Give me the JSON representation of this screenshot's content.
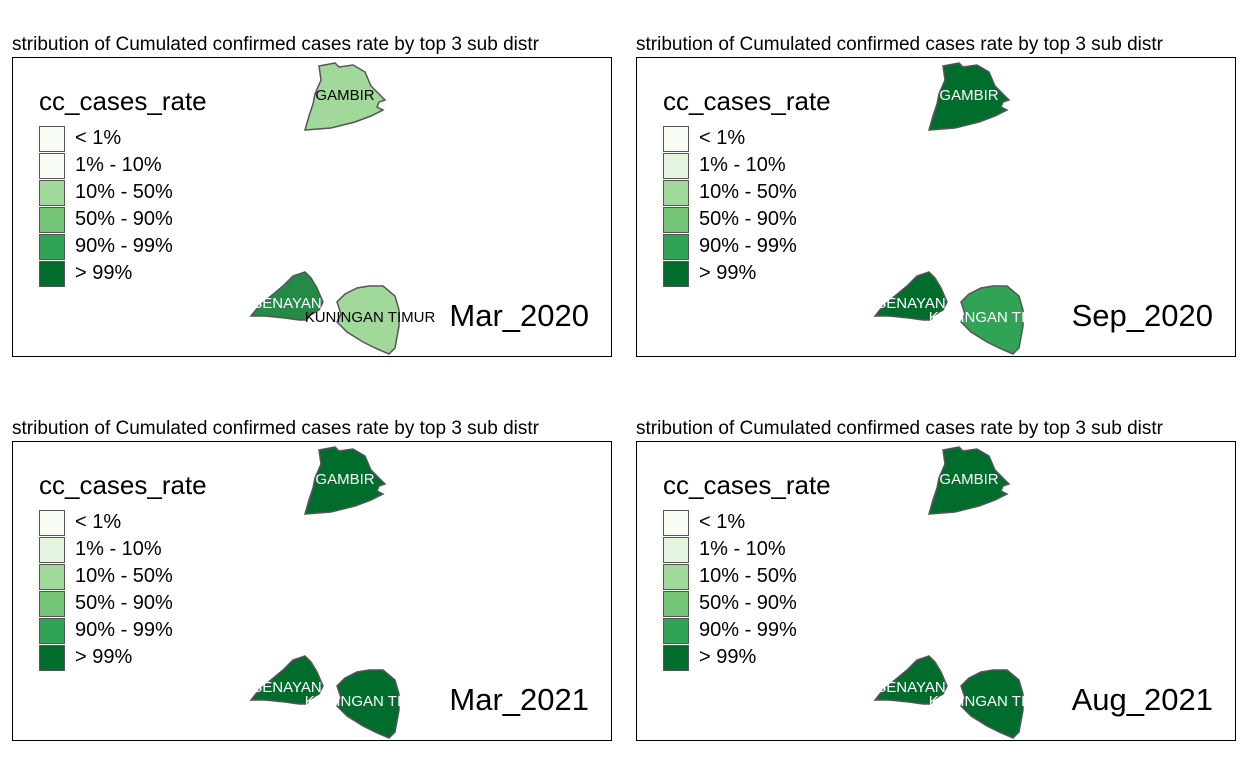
{
  "panels": [
    {
      "title": "stribution of Cumulated confirmed cases rate by top 3 sub distr",
      "legend_title": "cc_cases_rate",
      "period": "Mar_2020",
      "regions": [
        {
          "name": "GAMBIR",
          "fill": "#a1d99b",
          "label_color": "#000000"
        },
        {
          "name": "SENAYAN",
          "fill": "#238b45",
          "label_color": "#ffffff"
        },
        {
          "name": "KUNINGAN TIMUR",
          "fill": "#a1d99b",
          "label_color": "#000000"
        }
      ]
    },
    {
      "title": "stribution of Cumulated confirmed cases rate by top 3 sub distr",
      "legend_title": "cc_cases_rate",
      "period": "Sep_2020",
      "regions": [
        {
          "name": "GAMBIR",
          "fill": "#006d2c",
          "label_color": "#ffffff"
        },
        {
          "name": "SENAYAN",
          "fill": "#006d2c",
          "label_color": "#ffffff"
        },
        {
          "name": "KUNINGAN TIMUR",
          "fill": "#31a354",
          "label_color": "#ffffff"
        }
      ]
    },
    {
      "title": "stribution of Cumulated confirmed cases rate by top 3 sub distr",
      "legend_title": "cc_cases_rate",
      "period": "Mar_2021",
      "regions": [
        {
          "name": "GAMBIR",
          "fill": "#006d2c",
          "label_color": "#ffffff"
        },
        {
          "name": "SENAYAN",
          "fill": "#006d2c",
          "label_color": "#ffffff"
        },
        {
          "name": "KUNINGAN TIMUR",
          "fill": "#006d2c",
          "label_color": "#ffffff"
        }
      ]
    },
    {
      "title": "stribution of Cumulated confirmed cases rate by top 3 sub distr",
      "legend_title": "cc_cases_rate",
      "period": "Aug_2021",
      "regions": [
        {
          "name": "GAMBIR",
          "fill": "#006d2c",
          "label_color": "#ffffff"
        },
        {
          "name": "SENAYAN",
          "fill": "#006d2c",
          "label_color": "#ffffff"
        },
        {
          "name": "KUNINGAN TIMUR",
          "fill": "#006d2c",
          "label_color": "#ffffff"
        }
      ]
    }
  ],
  "legend_classes": [
    {
      "label": "< 1%",
      "color": "#f7fcf5"
    },
    {
      "label": "1% - 10%",
      "color": "#e5f5e0"
    },
    {
      "label": "10% - 50%",
      "color": "#a1d99b"
    },
    {
      "label": "50% - 90%",
      "color": "#74c476"
    },
    {
      "label": "90% - 99%",
      "color": "#31a354"
    },
    {
      "label": "> 99%",
      "color": "#006d2c"
    }
  ],
  "panel_legend_colors": [
    [
      "#f7fcf5",
      "#f7fcf5",
      "#a1d99b",
      "#74c476",
      "#31a354",
      "#006d2c"
    ],
    [
      "#f7fcf5",
      "#e5f5e0",
      "#a1d99b",
      "#74c476",
      "#31a354",
      "#006d2c"
    ],
    [
      "#f7fcf5",
      "#e5f5e0",
      "#a1d99b",
      "#74c476",
      "#31a354",
      "#006d2c"
    ],
    [
      "#f7fcf5",
      "#e5f5e0",
      "#a1d99b",
      "#74c476",
      "#31a354",
      "#006d2c"
    ]
  ]
}
